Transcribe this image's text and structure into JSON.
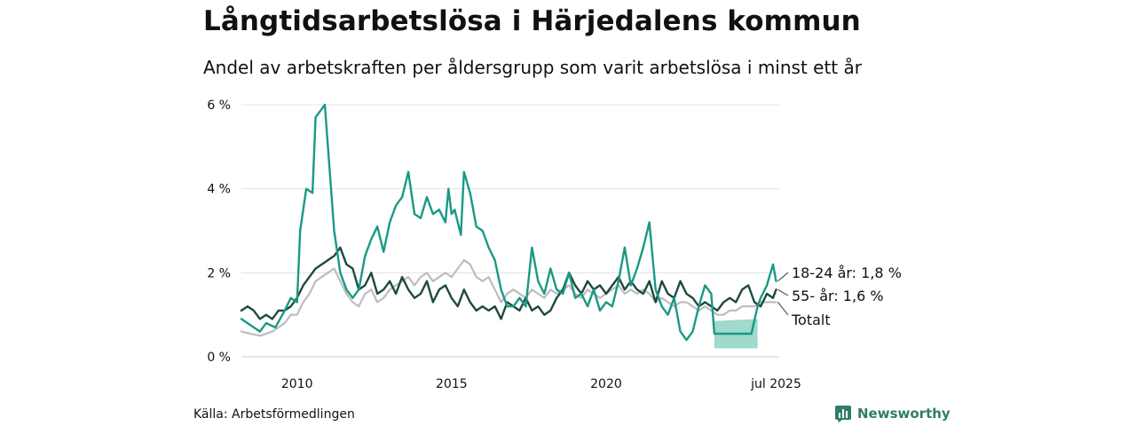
{
  "title": "Långtidsarbetslösa i Härjedalens kommun",
  "subtitle": "Andel av arbetskraften per åldersgrupp som varit arbetslösa i minst ett år",
  "source": "Källa: Arbetsförmedlingen",
  "brand": "Newsworthy",
  "chart_data": {
    "type": "line",
    "y_unit": "%",
    "ylim": [
      0,
      6
    ],
    "y_ticks": [
      0,
      2,
      4,
      6
    ],
    "y_tick_labels": [
      "0 %",
      "2 %",
      "4 %",
      "6 %"
    ],
    "xlim": [
      2008.2,
      2025.6
    ],
    "x_ticks": [
      2010,
      2015,
      2020,
      2025.5
    ],
    "x_tick_labels": [
      "2010",
      "2015",
      "2020",
      "jul 2025"
    ],
    "grid": true,
    "series": [
      {
        "name": "18-24 år",
        "end_label": "18-24 år: 1,8 %",
        "color": "#1a9985",
        "points": [
          [
            2008.2,
            0.9
          ],
          [
            2008.5,
            0.75
          ],
          [
            2008.8,
            0.6
          ],
          [
            2009.0,
            0.8
          ],
          [
            2009.3,
            0.7
          ],
          [
            2009.6,
            1.1
          ],
          [
            2009.8,
            1.4
          ],
          [
            2010.0,
            1.3
          ],
          [
            2010.1,
            3.0
          ],
          [
            2010.3,
            4.0
          ],
          [
            2010.5,
            3.9
          ],
          [
            2010.6,
            5.7
          ],
          [
            2010.8,
            5.9
          ],
          [
            2010.9,
            6.0
          ],
          [
            2011.0,
            5.0
          ],
          [
            2011.2,
            3.0
          ],
          [
            2011.4,
            2.0
          ],
          [
            2011.6,
            1.6
          ],
          [
            2011.8,
            1.4
          ],
          [
            2012.0,
            1.6
          ],
          [
            2012.2,
            2.4
          ],
          [
            2012.4,
            2.8
          ],
          [
            2012.6,
            3.1
          ],
          [
            2012.8,
            2.5
          ],
          [
            2013.0,
            3.2
          ],
          [
            2013.2,
            3.6
          ],
          [
            2013.4,
            3.8
          ],
          [
            2013.6,
            4.4
          ],
          [
            2013.8,
            3.4
          ],
          [
            2014.0,
            3.3
          ],
          [
            2014.2,
            3.8
          ],
          [
            2014.4,
            3.4
          ],
          [
            2014.6,
            3.5
          ],
          [
            2014.8,
            3.2
          ],
          [
            2014.9,
            4.0
          ],
          [
            2015.0,
            3.4
          ],
          [
            2015.1,
            3.5
          ],
          [
            2015.3,
            2.9
          ],
          [
            2015.4,
            4.4
          ],
          [
            2015.6,
            3.9
          ],
          [
            2015.8,
            3.1
          ],
          [
            2016.0,
            3.0
          ],
          [
            2016.2,
            2.6
          ],
          [
            2016.4,
            2.3
          ],
          [
            2016.6,
            1.6
          ],
          [
            2016.8,
            1.2
          ],
          [
            2017.0,
            1.2
          ],
          [
            2017.2,
            1.4
          ],
          [
            2017.4,
            1.2
          ],
          [
            2017.6,
            2.6
          ],
          [
            2017.8,
            1.8
          ],
          [
            2018.0,
            1.5
          ],
          [
            2018.2,
            2.1
          ],
          [
            2018.4,
            1.6
          ],
          [
            2018.6,
            1.5
          ],
          [
            2018.8,
            2.0
          ],
          [
            2019.0,
            1.4
          ],
          [
            2019.2,
            1.5
          ],
          [
            2019.4,
            1.2
          ],
          [
            2019.6,
            1.6
          ],
          [
            2019.8,
            1.1
          ],
          [
            2020.0,
            1.3
          ],
          [
            2020.2,
            1.2
          ],
          [
            2020.4,
            1.8
          ],
          [
            2020.6,
            2.6
          ],
          [
            2020.8,
            1.7
          ],
          [
            2021.0,
            2.1
          ],
          [
            2021.2,
            2.6
          ],
          [
            2021.4,
            3.2
          ],
          [
            2021.6,
            1.6
          ],
          [
            2021.8,
            1.2
          ],
          [
            2022.0,
            1.0
          ],
          [
            2022.2,
            1.4
          ],
          [
            2022.4,
            0.6
          ],
          [
            2022.6,
            0.4
          ],
          [
            2022.8,
            0.6
          ],
          [
            2023.0,
            1.2
          ],
          [
            2023.2,
            1.7
          ],
          [
            2023.4,
            1.5
          ],
          [
            2023.5,
            0.55
          ],
          [
            2024.0,
            0.55
          ],
          [
            2024.5,
            0.55
          ],
          [
            2024.7,
            0.55
          ],
          [
            2024.9,
            1.2
          ],
          [
            2025.0,
            1.4
          ],
          [
            2025.2,
            1.7
          ],
          [
            2025.4,
            2.2
          ],
          [
            2025.5,
            1.8
          ]
        ]
      },
      {
        "name": "55- år",
        "end_label": "55- år: 1,6 %",
        "color": "#1f4a3e",
        "points": [
          [
            2008.2,
            1.1
          ],
          [
            2008.4,
            1.2
          ],
          [
            2008.6,
            1.1
          ],
          [
            2008.8,
            0.9
          ],
          [
            2009.0,
            1.0
          ],
          [
            2009.2,
            0.9
          ],
          [
            2009.4,
            1.1
          ],
          [
            2009.6,
            1.1
          ],
          [
            2009.8,
            1.2
          ],
          [
            2010.0,
            1.4
          ],
          [
            2010.2,
            1.7
          ],
          [
            2010.4,
            1.9
          ],
          [
            2010.6,
            2.1
          ],
          [
            2010.8,
            2.2
          ],
          [
            2011.0,
            2.3
          ],
          [
            2011.2,
            2.4
          ],
          [
            2011.4,
            2.6
          ],
          [
            2011.6,
            2.2
          ],
          [
            2011.8,
            2.1
          ],
          [
            2012.0,
            1.6
          ],
          [
            2012.2,
            1.7
          ],
          [
            2012.4,
            2.0
          ],
          [
            2012.6,
            1.5
          ],
          [
            2012.8,
            1.6
          ],
          [
            2013.0,
            1.8
          ],
          [
            2013.2,
            1.5
          ],
          [
            2013.4,
            1.9
          ],
          [
            2013.6,
            1.6
          ],
          [
            2013.8,
            1.4
          ],
          [
            2014.0,
            1.5
          ],
          [
            2014.2,
            1.8
          ],
          [
            2014.4,
            1.3
          ],
          [
            2014.6,
            1.6
          ],
          [
            2014.8,
            1.7
          ],
          [
            2015.0,
            1.4
          ],
          [
            2015.2,
            1.2
          ],
          [
            2015.4,
            1.6
          ],
          [
            2015.6,
            1.3
          ],
          [
            2015.8,
            1.1
          ],
          [
            2016.0,
            1.2
          ],
          [
            2016.2,
            1.1
          ],
          [
            2016.4,
            1.2
          ],
          [
            2016.6,
            0.9
          ],
          [
            2016.8,
            1.3
          ],
          [
            2017.0,
            1.2
          ],
          [
            2017.2,
            1.1
          ],
          [
            2017.4,
            1.4
          ],
          [
            2017.6,
            1.1
          ],
          [
            2017.8,
            1.2
          ],
          [
            2018.0,
            1.0
          ],
          [
            2018.2,
            1.1
          ],
          [
            2018.4,
            1.4
          ],
          [
            2018.6,
            1.6
          ],
          [
            2018.8,
            2.0
          ],
          [
            2019.0,
            1.7
          ],
          [
            2019.2,
            1.5
          ],
          [
            2019.4,
            1.8
          ],
          [
            2019.6,
            1.6
          ],
          [
            2019.8,
            1.7
          ],
          [
            2020.0,
            1.5
          ],
          [
            2020.2,
            1.7
          ],
          [
            2020.4,
            1.9
          ],
          [
            2020.6,
            1.6
          ],
          [
            2020.8,
            1.8
          ],
          [
            2021.0,
            1.6
          ],
          [
            2021.2,
            1.5
          ],
          [
            2021.4,
            1.8
          ],
          [
            2021.6,
            1.3
          ],
          [
            2021.8,
            1.8
          ],
          [
            2022.0,
            1.5
          ],
          [
            2022.2,
            1.4
          ],
          [
            2022.4,
            1.8
          ],
          [
            2022.6,
            1.5
          ],
          [
            2022.8,
            1.4
          ],
          [
            2023.0,
            1.2
          ],
          [
            2023.2,
            1.3
          ],
          [
            2023.4,
            1.2
          ],
          [
            2023.6,
            1.1
          ],
          [
            2023.8,
            1.3
          ],
          [
            2024.0,
            1.4
          ],
          [
            2024.2,
            1.3
          ],
          [
            2024.4,
            1.6
          ],
          [
            2024.6,
            1.7
          ],
          [
            2024.8,
            1.3
          ],
          [
            2025.0,
            1.2
          ],
          [
            2025.2,
            1.5
          ],
          [
            2025.4,
            1.4
          ],
          [
            2025.5,
            1.6
          ]
        ]
      },
      {
        "name": "Totalt",
        "end_label": "Totalt",
        "color": "#bdbdbd",
        "points": [
          [
            2008.2,
            0.6
          ],
          [
            2008.5,
            0.55
          ],
          [
            2008.8,
            0.5
          ],
          [
            2009.2,
            0.6
          ],
          [
            2009.6,
            0.8
          ],
          [
            2009.8,
            1.0
          ],
          [
            2010.0,
            1.0
          ],
          [
            2010.2,
            1.3
          ],
          [
            2010.4,
            1.5
          ],
          [
            2010.6,
            1.8
          ],
          [
            2010.8,
            1.9
          ],
          [
            2011.0,
            2.0
          ],
          [
            2011.2,
            2.1
          ],
          [
            2011.4,
            1.8
          ],
          [
            2011.6,
            1.5
          ],
          [
            2011.8,
            1.3
          ],
          [
            2012.0,
            1.2
          ],
          [
            2012.2,
            1.5
          ],
          [
            2012.4,
            1.6
          ],
          [
            2012.6,
            1.3
          ],
          [
            2012.8,
            1.4
          ],
          [
            2013.0,
            1.6
          ],
          [
            2013.2,
            1.7
          ],
          [
            2013.4,
            1.8
          ],
          [
            2013.6,
            1.9
          ],
          [
            2013.8,
            1.7
          ],
          [
            2014.0,
            1.9
          ],
          [
            2014.2,
            2.0
          ],
          [
            2014.4,
            1.8
          ],
          [
            2014.6,
            1.9
          ],
          [
            2014.8,
            2.0
          ],
          [
            2015.0,
            1.9
          ],
          [
            2015.2,
            2.1
          ],
          [
            2015.4,
            2.3
          ],
          [
            2015.6,
            2.2
          ],
          [
            2015.8,
            1.9
          ],
          [
            2016.0,
            1.8
          ],
          [
            2016.2,
            1.9
          ],
          [
            2016.4,
            1.6
          ],
          [
            2016.6,
            1.3
          ],
          [
            2016.8,
            1.5
          ],
          [
            2017.0,
            1.6
          ],
          [
            2017.2,
            1.5
          ],
          [
            2017.4,
            1.4
          ],
          [
            2017.6,
            1.6
          ],
          [
            2017.8,
            1.5
          ],
          [
            2018.0,
            1.4
          ],
          [
            2018.2,
            1.6
          ],
          [
            2018.4,
            1.5
          ],
          [
            2018.6,
            1.6
          ],
          [
            2018.8,
            1.7
          ],
          [
            2019.0,
            1.5
          ],
          [
            2019.2,
            1.4
          ],
          [
            2019.4,
            1.6
          ],
          [
            2019.6,
            1.5
          ],
          [
            2019.8,
            1.4
          ],
          [
            2020.0,
            1.5
          ],
          [
            2020.2,
            1.6
          ],
          [
            2020.4,
            1.7
          ],
          [
            2020.6,
            1.5
          ],
          [
            2020.8,
            1.6
          ],
          [
            2021.0,
            1.5
          ],
          [
            2021.2,
            1.6
          ],
          [
            2021.4,
            1.5
          ],
          [
            2021.6,
            1.3
          ],
          [
            2021.8,
            1.4
          ],
          [
            2022.0,
            1.3
          ],
          [
            2022.2,
            1.2
          ],
          [
            2022.4,
            1.3
          ],
          [
            2022.6,
            1.3
          ],
          [
            2022.8,
            1.2
          ],
          [
            2023.0,
            1.1
          ],
          [
            2023.2,
            1.2
          ],
          [
            2023.4,
            1.1
          ],
          [
            2023.6,
            1.0
          ],
          [
            2023.8,
            1.0
          ],
          [
            2024.0,
            1.1
          ],
          [
            2024.2,
            1.1
          ],
          [
            2024.4,
            1.2
          ],
          [
            2024.6,
            1.2
          ],
          [
            2024.8,
            1.2
          ],
          [
            2025.0,
            1.3
          ],
          [
            2025.2,
            1.3
          ],
          [
            2025.5,
            1.3
          ]
        ]
      }
    ],
    "band": {
      "series": "18-24 år",
      "color": "#8fd2c4",
      "x": [
        2023.5,
        2024.9
      ],
      "lower": 0.2,
      "upper": [
        0.85,
        0.9
      ]
    }
  }
}
